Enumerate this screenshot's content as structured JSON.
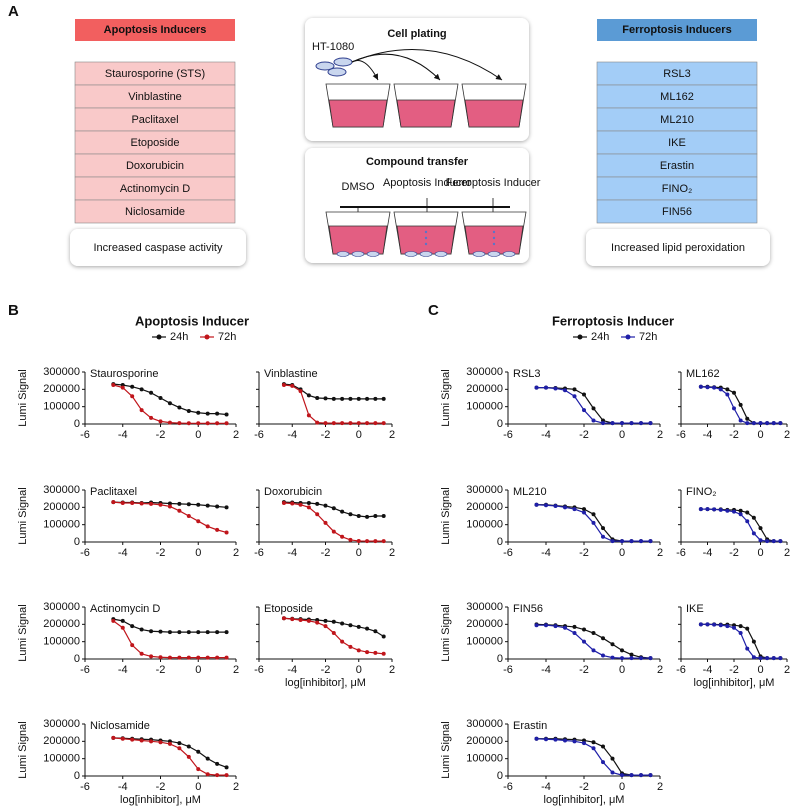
{
  "panel_a": {
    "label": "A",
    "apoptosis": {
      "title": "Apoptosis Inducers",
      "items": [
        "Staurosporine (STS)",
        "Vinblastine",
        "Paclitaxel",
        "Etoposide",
        "Doxorubicin",
        "Actinomycin D",
        "Niclosamide"
      ],
      "footer": "Increased caspase activity"
    },
    "ferroptosis": {
      "title": "Ferroptosis Inducers",
      "items": [
        "RSL3",
        "ML162",
        "ML210",
        "IKE",
        "Erastin",
        "FINO₂",
        "FIN56"
      ],
      "footer": "Increased lipid peroxidation"
    },
    "cell_plating": {
      "title": "Cell plating",
      "cell_line": "HT-1080"
    },
    "compound_transfer": {
      "title": "Compound transfer",
      "wells": [
        "DMSO",
        "Apoptosis Inducer",
        "Ferroptosis Inducer"
      ]
    }
  },
  "panel_b": {
    "label": "B",
    "title": "Apoptosis Inducer",
    "legend": [
      "24h",
      "72h"
    ]
  },
  "panel_c": {
    "label": "C",
    "title": "Ferroptosis Inducer",
    "legend": [
      "24h",
      "72h"
    ]
  },
  "chart_data": [
    {
      "type": "line",
      "title": "Staurosporine",
      "ylabel": "Lumi Signal",
      "x": [
        -4.5,
        -4,
        -3.5,
        -3,
        -2.5,
        -2,
        -1.5,
        -1,
        -0.5,
        0,
        0.5,
        1,
        1.5
      ],
      "xlim": [
        -6,
        2
      ],
      "xticks": [
        -6,
        -4,
        -2,
        0,
        2
      ],
      "ylim": [
        0,
        300000
      ],
      "yticks": [
        0,
        100000,
        200000,
        300000
      ],
      "series": [
        {
          "color": "#111111",
          "values": [
            230000,
            225000,
            215000,
            200000,
            180000,
            150000,
            120000,
            95000,
            75000,
            65000,
            60000,
            60000,
            55000
          ]
        },
        {
          "color": "#c0151b",
          "values": [
            225000,
            210000,
            160000,
            80000,
            35000,
            15000,
            8000,
            5000,
            4000,
            4000,
            4000,
            4000,
            4000
          ]
        }
      ]
    },
    {
      "type": "line",
      "title": "Vinblastine",
      "x": [
        -4.5,
        -4,
        -3.5,
        -3,
        -2.5,
        -2,
        -1.5,
        -1,
        -0.5,
        0,
        0.5,
        1,
        1.5
      ],
      "xlim": [
        -6,
        2
      ],
      "xticks": [
        -6,
        -4,
        -2,
        0,
        2
      ],
      "ylim": [
        0,
        300000
      ],
      "yticks": [
        0,
        100000,
        200000,
        300000
      ],
      "series": [
        {
          "color": "#111111",
          "values": [
            230000,
            225000,
            200000,
            165000,
            150000,
            148000,
            145000,
            145000,
            145000,
            145000,
            145000,
            145000,
            145000
          ]
        },
        {
          "color": "#c0151b",
          "values": [
            225000,
            220000,
            190000,
            50000,
            8000,
            5000,
            5000,
            5000,
            5000,
            5000,
            5000,
            5000,
            5000
          ]
        }
      ]
    },
    {
      "type": "line",
      "title": "Paclitaxel",
      "ylabel": "Lumi Signal",
      "x": [
        -4.5,
        -4,
        -3.5,
        -3,
        -2.5,
        -2,
        -1.5,
        -1,
        -0.5,
        0,
        0.5,
        1,
        1.5
      ],
      "xlim": [
        -6,
        2
      ],
      "xticks": [
        -6,
        -4,
        -2,
        0,
        2
      ],
      "ylim": [
        0,
        300000
      ],
      "yticks": [
        0,
        100000,
        200000,
        300000
      ],
      "series": [
        {
          "color": "#111111",
          "values": [
            230000,
            228000,
            228000,
            225000,
            228000,
            225000,
            222000,
            220000,
            218000,
            215000,
            210000,
            205000,
            200000
          ]
        },
        {
          "color": "#c0151b",
          "values": [
            230000,
            225000,
            225000,
            222000,
            220000,
            215000,
            205000,
            180000,
            150000,
            120000,
            90000,
            70000,
            55000
          ]
        }
      ]
    },
    {
      "type": "line",
      "title": "Doxorubicin",
      "x": [
        -4.5,
        -4,
        -3.5,
        -3,
        -2.5,
        -2,
        -1.5,
        -1,
        -0.5,
        0,
        0.5,
        1,
        1.5
      ],
      "xlim": [
        -6,
        2
      ],
      "xticks": [
        -6,
        -4,
        -2,
        0,
        2
      ],
      "ylim": [
        0,
        300000
      ],
      "yticks": [
        0,
        100000,
        200000,
        300000
      ],
      "series": [
        {
          "color": "#111111",
          "values": [
            230000,
            228000,
            225000,
            225000,
            220000,
            210000,
            195000,
            175000,
            160000,
            150000,
            145000,
            150000,
            150000
          ]
        },
        {
          "color": "#c0151b",
          "values": [
            225000,
            222000,
            215000,
            200000,
            160000,
            110000,
            60000,
            30000,
            12000,
            6000,
            5000,
            5000,
            5000
          ]
        }
      ]
    },
    {
      "type": "line",
      "title": "Actinomycin D",
      "ylabel": "Lumi Signal",
      "x": [
        -4.5,
        -4,
        -3.5,
        -3,
        -2.5,
        -2,
        -1.5,
        -1,
        -0.5,
        0,
        0.5,
        1,
        1.5
      ],
      "xlim": [
        -6,
        2
      ],
      "xticks": [
        -6,
        -4,
        -2,
        0,
        2
      ],
      "ylim": [
        0,
        300000
      ],
      "yticks": [
        0,
        100000,
        200000,
        300000
      ],
      "series": [
        {
          "color": "#111111",
          "values": [
            230000,
            220000,
            190000,
            170000,
            160000,
            158000,
            155000,
            155000,
            155000,
            155000,
            155000,
            155000,
            155000
          ]
        },
        {
          "color": "#c0151b",
          "values": [
            220000,
            180000,
            80000,
            30000,
            15000,
            10000,
            8000,
            8000,
            8000,
            8000,
            8000,
            8000,
            8000
          ]
        }
      ]
    },
    {
      "type": "line",
      "title": "Etoposide",
      "xlabel": "log[inhibitor], μM",
      "x": [
        -4.5,
        -4,
        -3.5,
        -3,
        -2.5,
        -2,
        -1.5,
        -1,
        -0.5,
        0,
        0.5,
        1,
        1.5
      ],
      "xlim": [
        -6,
        2
      ],
      "xticks": [
        -6,
        -4,
        -2,
        0,
        2
      ],
      "ylim": [
        0,
        300000
      ],
      "yticks": [
        0,
        100000,
        200000,
        300000
      ],
      "series": [
        {
          "color": "#111111",
          "values": [
            235000,
            232000,
            230000,
            228000,
            225000,
            220000,
            215000,
            205000,
            195000,
            185000,
            175000,
            160000,
            130000
          ]
        },
        {
          "color": "#c0151b",
          "values": [
            235000,
            230000,
            225000,
            220000,
            210000,
            190000,
            150000,
            100000,
            70000,
            50000,
            40000,
            35000,
            30000
          ]
        }
      ]
    },
    {
      "type": "line",
      "title": "Niclosamide",
      "ylabel": "Lumi Signal",
      "xlabel": "log[inhibitor], μM",
      "x": [
        -4.5,
        -4,
        -3.5,
        -3,
        -2.5,
        -2,
        -1.5,
        -1,
        -0.5,
        0,
        0.5,
        1,
        1.5
      ],
      "xlim": [
        -6,
        2
      ],
      "xticks": [
        -6,
        -4,
        -2,
        0,
        2
      ],
      "ylim": [
        0,
        300000
      ],
      "yticks": [
        0,
        100000,
        200000,
        300000
      ],
      "series": [
        {
          "color": "#111111",
          "values": [
            220000,
            218000,
            215000,
            212000,
            210000,
            205000,
            200000,
            190000,
            170000,
            140000,
            100000,
            70000,
            50000
          ]
        },
        {
          "color": "#c0151b",
          "values": [
            220000,
            215000,
            210000,
            205000,
            200000,
            195000,
            185000,
            160000,
            110000,
            40000,
            10000,
            5000,
            5000
          ]
        }
      ]
    },
    {
      "type": "line",
      "title": "RSL3",
      "ylabel": "Lumi Signal",
      "x": [
        -4.5,
        -4,
        -3.5,
        -3,
        -2.5,
        -2,
        -1.5,
        -1,
        -0.5,
        0,
        0.5,
        1,
        1.5
      ],
      "xlim": [
        -6,
        2
      ],
      "xticks": [
        -6,
        -4,
        -2,
        0,
        2
      ],
      "ylim": [
        0,
        300000
      ],
      "yticks": [
        0,
        100000,
        200000,
        300000
      ],
      "series": [
        {
          "color": "#111111",
          "values": [
            210000,
            210000,
            208000,
            205000,
            200000,
            170000,
            90000,
            20000,
            5000,
            5000,
            5000,
            5000,
            5000
          ]
        },
        {
          "color": "#1f1fa8",
          "values": [
            210000,
            210000,
            205000,
            195000,
            160000,
            80000,
            20000,
            5000,
            5000,
            5000,
            5000,
            5000,
            5000
          ]
        }
      ]
    },
    {
      "type": "line",
      "title": "ML162",
      "x": [
        -4.5,
        -4,
        -3.5,
        -3,
        -2.5,
        -2,
        -1.5,
        -1,
        -0.5,
        0,
        0.5,
        1,
        1.5
      ],
      "xlim": [
        -6,
        2
      ],
      "xticks": [
        -6,
        -4,
        -2,
        0,
        2
      ],
      "ylim": [
        0,
        300000
      ],
      "yticks": [
        0,
        100000,
        200000,
        300000
      ],
      "series": [
        {
          "color": "#111111",
          "values": [
            215000,
            215000,
            212000,
            210000,
            200000,
            180000,
            110000,
            30000,
            5000,
            5000,
            5000,
            5000,
            5000
          ]
        },
        {
          "color": "#1f1fa8",
          "values": [
            215000,
            212000,
            210000,
            200000,
            170000,
            90000,
            20000,
            5000,
            5000,
            5000,
            5000,
            5000,
            5000
          ]
        }
      ]
    },
    {
      "type": "line",
      "title": "ML210",
      "ylabel": "Lumi Signal",
      "x": [
        -4.5,
        -4,
        -3.5,
        -3,
        -2.5,
        -2,
        -1.5,
        -1,
        -0.5,
        0,
        0.5,
        1,
        1.5
      ],
      "xlim": [
        -6,
        2
      ],
      "xticks": [
        -6,
        -4,
        -2,
        0,
        2
      ],
      "ylim": [
        0,
        300000
      ],
      "yticks": [
        0,
        100000,
        200000,
        300000
      ],
      "series": [
        {
          "color": "#111111",
          "values": [
            215000,
            215000,
            210000,
            205000,
            200000,
            190000,
            160000,
            80000,
            15000,
            5000,
            5000,
            5000,
            5000
          ]
        },
        {
          "color": "#1f1fa8",
          "values": [
            215000,
            212000,
            208000,
            200000,
            190000,
            170000,
            110000,
            30000,
            5000,
            5000,
            5000,
            5000,
            5000
          ]
        }
      ]
    },
    {
      "type": "line",
      "title": "FINO₂",
      "x": [
        -4.5,
        -4,
        -3.5,
        -3,
        -2.5,
        -2,
        -1.5,
        -1,
        -0.5,
        0,
        0.5,
        1,
        1.5
      ],
      "xlim": [
        -6,
        2
      ],
      "xticks": [
        -6,
        -4,
        -2,
        0,
        2
      ],
      "ylim": [
        0,
        300000
      ],
      "yticks": [
        0,
        100000,
        200000,
        300000
      ],
      "series": [
        {
          "color": "#111111",
          "values": [
            190000,
            190000,
            188000,
            188000,
            185000,
            185000,
            180000,
            170000,
            140000,
            80000,
            15000,
            5000,
            5000
          ]
        },
        {
          "color": "#1f1fa8",
          "values": [
            190000,
            190000,
            188000,
            185000,
            180000,
            175000,
            160000,
            120000,
            50000,
            10000,
            5000,
            5000,
            5000
          ]
        }
      ]
    },
    {
      "type": "line",
      "title": "FIN56",
      "ylabel": "Lumi Signal",
      "x": [
        -4.5,
        -4,
        -3.5,
        -3,
        -2.5,
        -2,
        -1.5,
        -1,
        -0.5,
        0,
        0.5,
        1,
        1.5
      ],
      "xlim": [
        -6,
        2
      ],
      "xticks": [
        -6,
        -4,
        -2,
        0,
        2
      ],
      "ylim": [
        0,
        300000
      ],
      "yticks": [
        0,
        100000,
        200000,
        300000
      ],
      "series": [
        {
          "color": "#111111",
          "values": [
            200000,
            198000,
            195000,
            190000,
            185000,
            170000,
            150000,
            120000,
            85000,
            50000,
            25000,
            10000,
            5000
          ]
        },
        {
          "color": "#1f1fa8",
          "values": [
            195000,
            195000,
            190000,
            180000,
            150000,
            100000,
            50000,
            20000,
            8000,
            5000,
            5000,
            5000,
            5000
          ]
        }
      ]
    },
    {
      "type": "line",
      "title": "IKE",
      "xlabel": "log[inhibitor], μM",
      "x": [
        -4.5,
        -4,
        -3.5,
        -3,
        -2.5,
        -2,
        -1.5,
        -1,
        -0.5,
        0,
        0.5,
        1,
        1.5
      ],
      "xlim": [
        -6,
        2
      ],
      "xticks": [
        -6,
        -4,
        -2,
        0,
        2
      ],
      "ylim": [
        0,
        300000
      ],
      "yticks": [
        0,
        100000,
        200000,
        300000
      ],
      "series": [
        {
          "color": "#111111",
          "values": [
            200000,
            200000,
            200000,
            198000,
            198000,
            195000,
            190000,
            175000,
            100000,
            15000,
            5000,
            5000,
            5000
          ]
        },
        {
          "color": "#1f1fa8",
          "values": [
            200000,
            200000,
            198000,
            195000,
            190000,
            180000,
            150000,
            60000,
            10000,
            5000,
            5000,
            5000,
            5000
          ]
        }
      ]
    },
    {
      "type": "line",
      "title": "Erastin",
      "ylabel": "Lumi Signal",
      "xlabel": "log[inhibitor], μM",
      "x": [
        -4.5,
        -4,
        -3.5,
        -3,
        -2.5,
        -2,
        -1.5,
        -1,
        -0.5,
        0,
        0.5,
        1,
        1.5
      ],
      "xlim": [
        -6,
        2
      ],
      "xticks": [
        -6,
        -4,
        -2,
        0,
        2
      ],
      "ylim": [
        0,
        300000
      ],
      "yticks": [
        0,
        100000,
        200000,
        300000
      ],
      "series": [
        {
          "color": "#111111",
          "values": [
            215000,
            215000,
            215000,
            212000,
            210000,
            205000,
            195000,
            170000,
            100000,
            15000,
            5000,
            5000,
            5000
          ]
        },
        {
          "color": "#1f1fa8",
          "values": [
            215000,
            212000,
            210000,
            205000,
            200000,
            190000,
            160000,
            80000,
            20000,
            5000,
            5000,
            5000,
            5000
          ]
        }
      ]
    }
  ]
}
